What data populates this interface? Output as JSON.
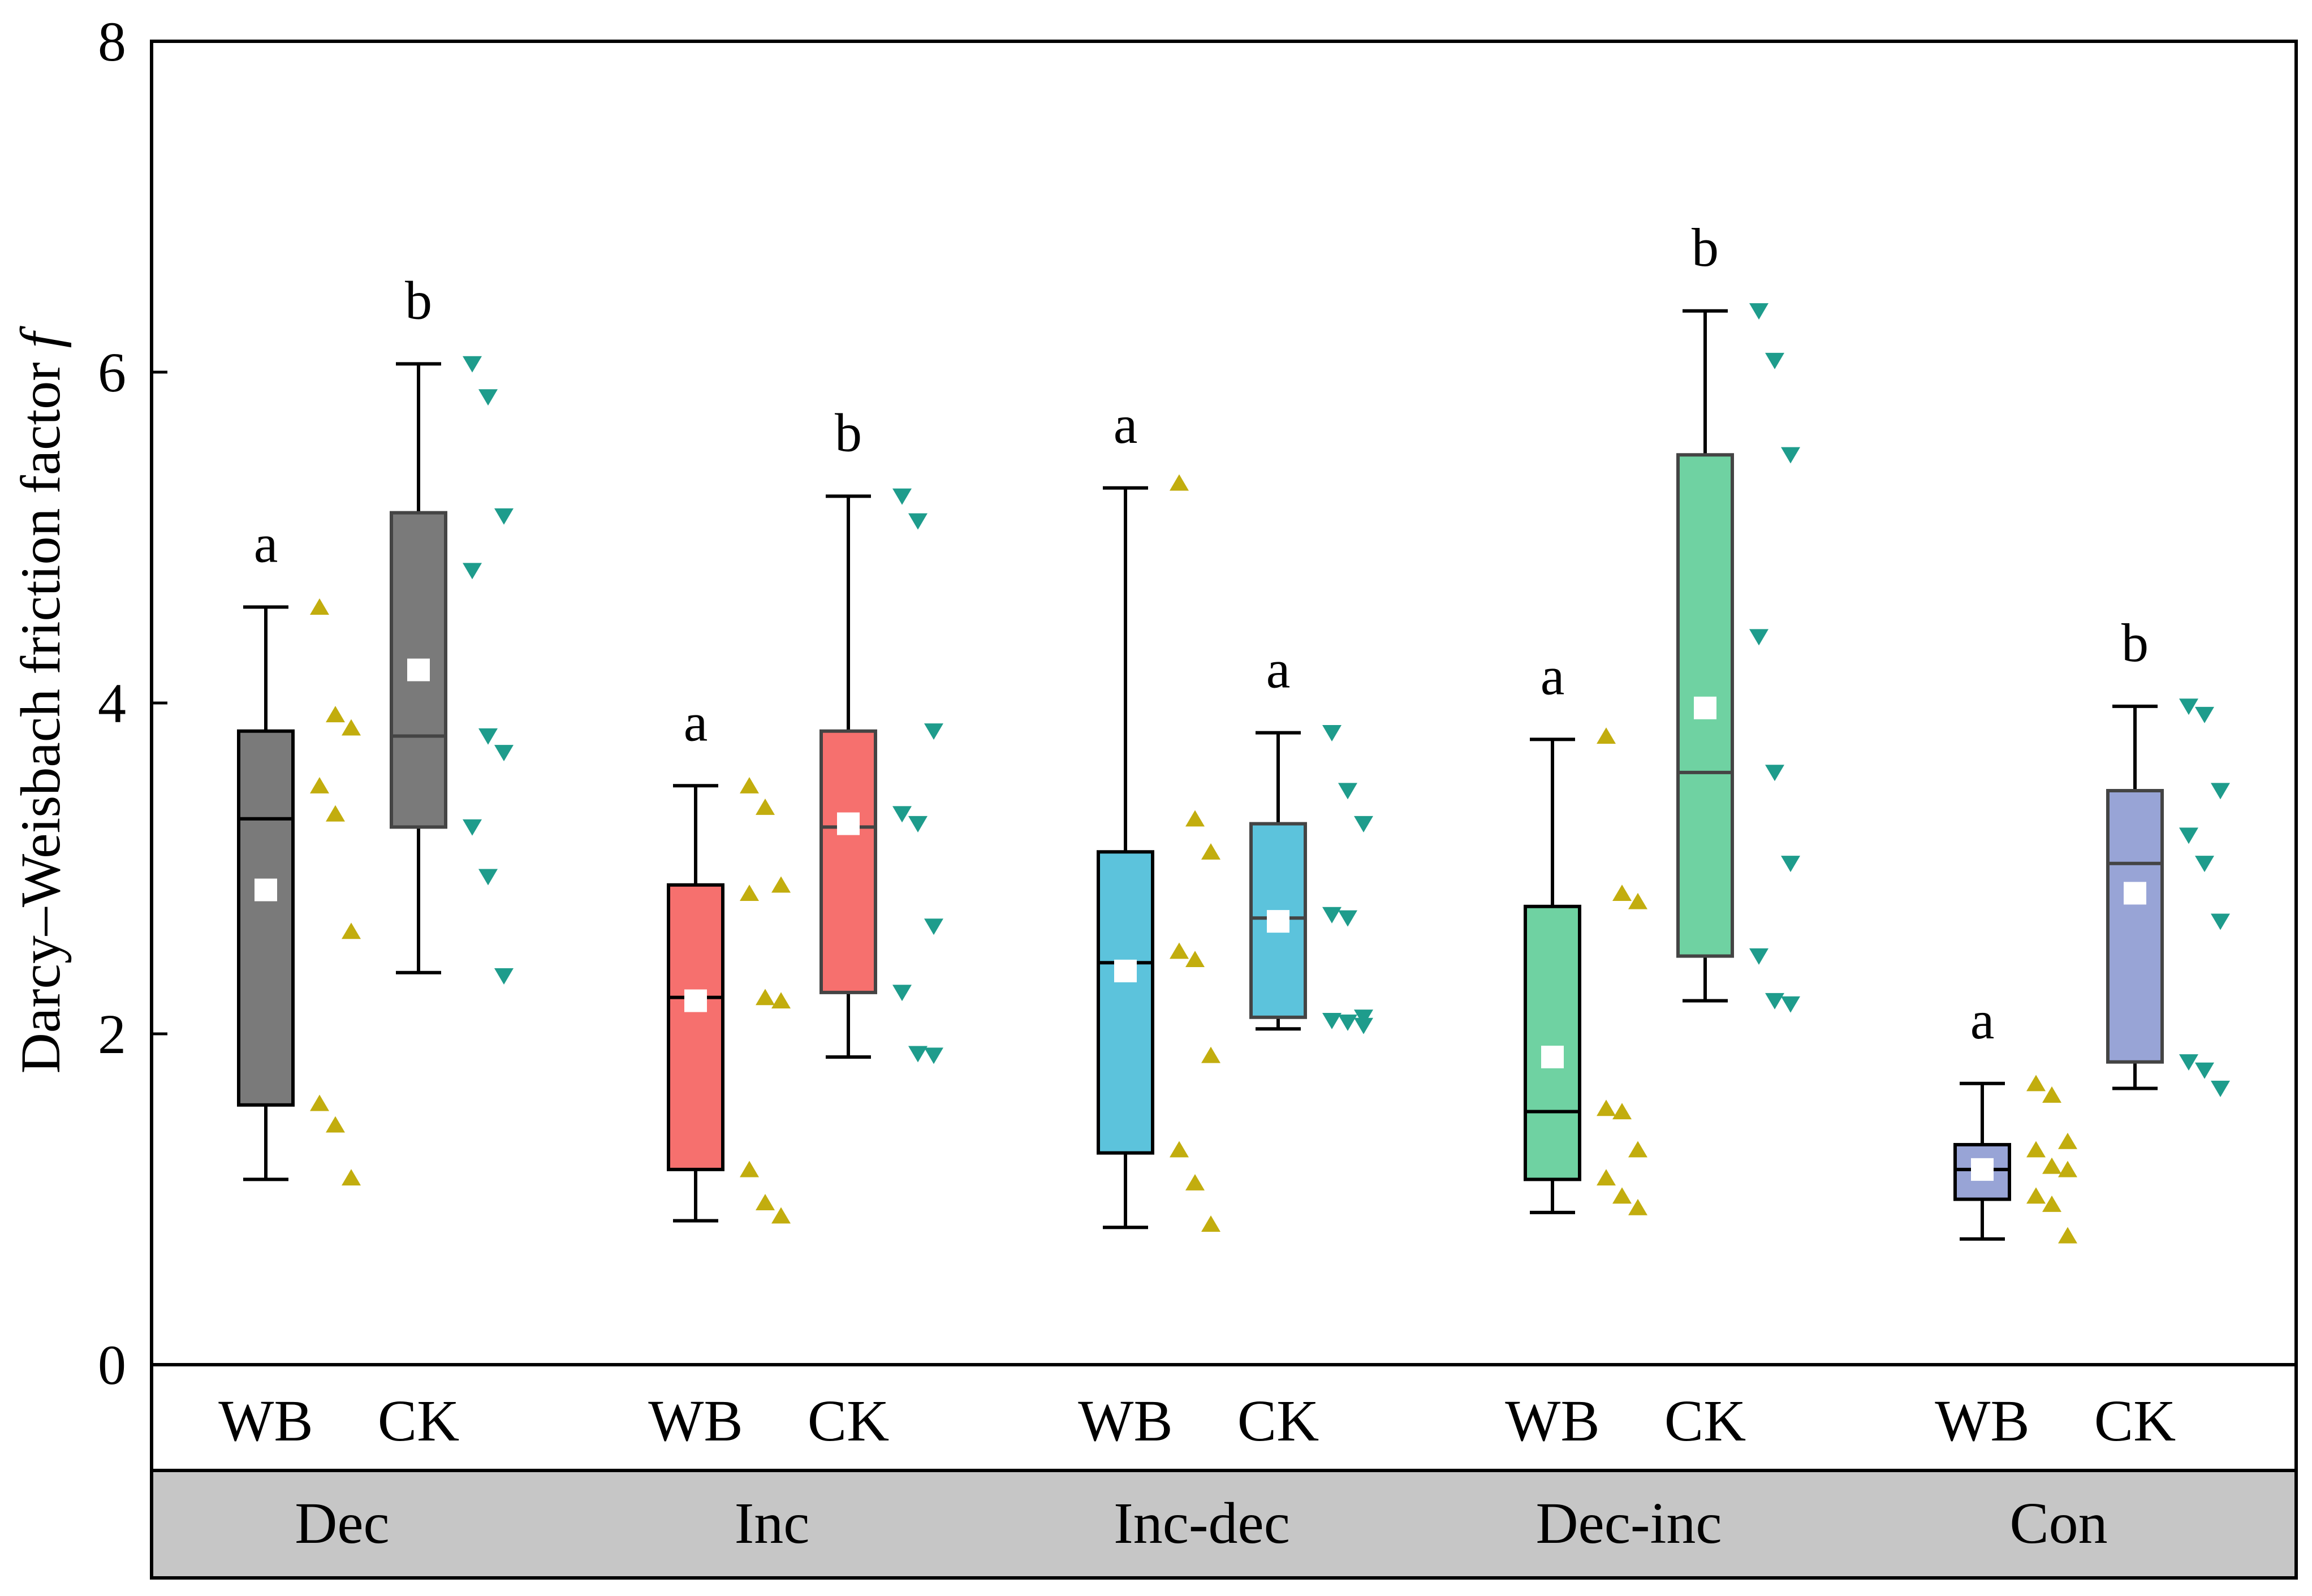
{
  "chart_data": {
    "type": "box",
    "ylabel": "Darcy–Weisbach friction factor",
    "ylabel_symbol": "f",
    "ylim": [
      0,
      8
    ],
    "yticks": [
      "0",
      "2",
      "4",
      "6",
      "8"
    ],
    "groups": [
      {
        "name": "Dec",
        "boxes": [
          {
            "label": "WB",
            "color": "#7a7a7a",
            "whisker_low": 1.12,
            "q1": 1.57,
            "median": 3.3,
            "q3": 3.83,
            "whisker_high": 4.58,
            "mean": 2.87,
            "sig": "a",
            "points": [
              4.58,
              3.93,
              3.85,
              3.5,
              3.33,
              2.62,
              1.58,
              1.45,
              1.13
            ]
          },
          {
            "label": "CK",
            "color": "#7a7a7a",
            "whisker_low": 2.37,
            "q1": 3.25,
            "median": 3.8,
            "q3": 5.15,
            "whisker_high": 6.05,
            "mean": 4.2,
            "sig": "b",
            "points": [
              6.05,
              5.85,
              5.13,
              4.8,
              3.8,
              3.7,
              3.25,
              2.95,
              2.35
            ]
          }
        ]
      },
      {
        "name": "Inc",
        "boxes": [
          {
            "label": "WB",
            "color": "#f6706e",
            "whisker_low": 0.87,
            "q1": 1.18,
            "median": 2.22,
            "q3": 2.9,
            "whisker_high": 3.5,
            "mean": 2.2,
            "sig": "a",
            "points": [
              3.5,
              3.37,
              2.9,
              2.85,
              2.22,
              2.2,
              1.18,
              0.98,
              0.9
            ]
          },
          {
            "label": "CK",
            "color": "#f6706e",
            "whisker_low": 1.86,
            "q1": 2.25,
            "median": 3.25,
            "q3": 3.83,
            "whisker_high": 5.25,
            "mean": 3.27,
            "sig": "b",
            "points": [
              5.25,
              5.1,
              3.83,
              3.33,
              3.27,
              2.65,
              2.25,
              1.88,
              1.87
            ]
          }
        ]
      },
      {
        "name": "Inc-dec",
        "boxes": [
          {
            "label": "WB",
            "color": "#5cc3dc",
            "whisker_low": 0.83,
            "q1": 1.28,
            "median": 2.43,
            "q3": 3.1,
            "whisker_high": 5.3,
            "mean": 2.38,
            "sig": "a",
            "points": [
              5.33,
              3.3,
              3.1,
              2.5,
              2.45,
              1.87,
              1.3,
              1.1,
              0.85
            ]
          },
          {
            "label": "CK",
            "color": "#5cc3dc",
            "whisker_low": 2.03,
            "q1": 2.1,
            "median": 2.7,
            "q3": 3.27,
            "whisker_high": 3.82,
            "mean": 2.68,
            "sig": "a",
            "points": [
              3.82,
              3.47,
              3.27,
              2.72,
              2.7,
              2.1,
              2.08,
              2.07,
              2.05
            ]
          }
        ]
      },
      {
        "name": "Dec-inc",
        "boxes": [
          {
            "label": "WB",
            "color": "#6fd2a2",
            "whisker_low": 0.92,
            "q1": 1.12,
            "median": 1.53,
            "q3": 2.77,
            "whisker_high": 3.78,
            "mean": 1.86,
            "sig": "a",
            "points": [
              3.8,
              2.85,
              2.8,
              1.55,
              1.53,
              1.3,
              1.13,
              1.02,
              0.95
            ]
          },
          {
            "label": "CK",
            "color": "#6fd2a2",
            "whisker_low": 2.2,
            "q1": 2.47,
            "median": 3.58,
            "q3": 5.5,
            "whisker_high": 6.37,
            "mean": 3.97,
            "sig": "b",
            "points": [
              6.37,
              6.07,
              5.5,
              4.4,
              3.58,
              3.03,
              2.47,
              2.2,
              2.18
            ]
          }
        ]
      },
      {
        "name": "Con",
        "boxes": [
          {
            "label": "WB",
            "color": "#98a4d6",
            "whisker_low": 0.76,
            "q1": 1.0,
            "median": 1.18,
            "q3": 1.33,
            "whisker_high": 1.7,
            "mean": 1.18,
            "sig": "a",
            "points": [
              1.7,
              1.63,
              1.35,
              1.3,
              1.2,
              1.18,
              1.02,
              0.97,
              0.78
            ]
          },
          {
            "label": "CK",
            "color": "#98a4d6",
            "whisker_low": 1.67,
            "q1": 1.83,
            "median": 3.03,
            "q3": 3.47,
            "whisker_high": 3.98,
            "mean": 2.85,
            "sig": "b",
            "points": [
              3.98,
              3.93,
              3.47,
              3.2,
              3.03,
              2.68,
              1.83,
              1.78,
              1.67
            ]
          }
        ]
      }
    ],
    "wb_marker_color": "#c2ad0e",
    "ck_marker_color": "#1e9c8c",
    "mean_marker_color": "#ffffff"
  }
}
